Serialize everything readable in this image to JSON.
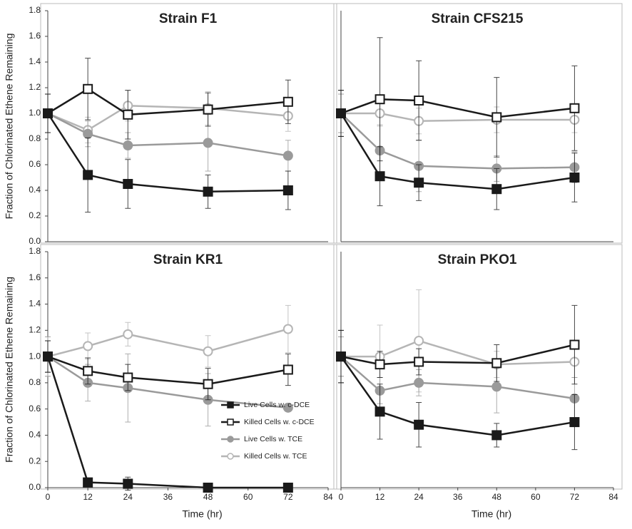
{
  "chart_data": [
    {
      "type": "line",
      "title": "Strain F1",
      "ylabel": "Fraction of Chlorinated Ethene Remaining",
      "x": [
        0,
        12,
        24,
        48,
        72
      ],
      "xlim": [
        0,
        84
      ],
      "ylim": [
        0,
        1.8
      ],
      "yticks": [
        {
          "value": 0,
          "label": "0.0"
        },
        {
          "value": 0.2,
          "label": "0.2"
        },
        {
          "value": 0.4,
          "label": "0.4"
        },
        {
          "value": 0.6,
          "label": "0.6"
        },
        {
          "value": 0.8,
          "label": "0.8"
        },
        {
          "value": 1,
          "label": "1.0"
        },
        {
          "value": 1.2,
          "label": "1.2"
        },
        {
          "value": 1.4,
          "label": "1.4"
        },
        {
          "value": 1.6,
          "label": "1.6"
        },
        {
          "value": 1.8,
          "label": "1.8"
        }
      ],
      "series": [
        {
          "color": "#1a1a1a",
          "marker": "square",
          "filled": true,
          "values": [
            1.0,
            0.52,
            0.45,
            0.39,
            0.4
          ],
          "errors": [
            0.15,
            0.29,
            0.19,
            0.13,
            0.15
          ]
        },
        {
          "color": "#1a1a1a",
          "marker": "square",
          "filled": false,
          "values": [
            1.0,
            1.19,
            0.99,
            1.03,
            1.09
          ],
          "errors": [
            0.15,
            0.24,
            0.19,
            0.13,
            0.17
          ]
        },
        {
          "color": "#9a9a9a",
          "marker": "circle",
          "filled": true,
          "values": [
            1.0,
            0.84,
            0.75,
            0.77,
            0.67
          ],
          "errors": [
            0.15,
            0.1,
            0.1,
            0.22,
            0.12
          ]
        },
        {
          "color": "#b5b5b5",
          "marker": "circle",
          "filled": false,
          "values": [
            1.0,
            0.87,
            1.06,
            1.04,
            0.98
          ],
          "errors": [
            0.15,
            0.1,
            0.12,
            0.13,
            0.12
          ]
        }
      ]
    },
    {
      "type": "line",
      "title": "Strain CFS215",
      "x": [
        0,
        12,
        24,
        48,
        72
      ],
      "xlim": [
        0,
        84
      ],
      "ylim": [
        0,
        1.8
      ],
      "series": [
        {
          "color": "#1a1a1a",
          "marker": "square",
          "filled": true,
          "values": [
            1.0,
            0.51,
            0.46,
            0.41,
            0.5
          ],
          "errors": [
            0.18,
            0.23,
            0.14,
            0.16,
            0.19
          ]
        },
        {
          "color": "#1a1a1a",
          "marker": "square",
          "filled": false,
          "values": [
            1.0,
            1.11,
            1.1,
            0.97,
            1.04
          ],
          "errors": [
            0.18,
            0.48,
            0.31,
            0.31,
            0.33
          ]
        },
        {
          "color": "#9a9a9a",
          "marker": "circle",
          "filled": true,
          "values": [
            1.0,
            0.71,
            0.59,
            0.57,
            0.58
          ],
          "errors": [
            0.15,
            0.2,
            0.2,
            0.1,
            0.12
          ]
        },
        {
          "color": "#b5b5b5",
          "marker": "circle",
          "filled": false,
          "values": [
            1.0,
            1.0,
            0.94,
            0.95,
            0.95
          ],
          "errors": [
            0.15,
            0.1,
            0.1,
            0.1,
            0.1
          ]
        }
      ]
    },
    {
      "type": "line",
      "title": "Strain KR1",
      "ylabel": "Fraction of Chlorinated Ethene Remaining",
      "xlabel": "Time (hr)",
      "x": [
        0,
        12,
        24,
        48,
        72
      ],
      "xlim": [
        0,
        84
      ],
      "ylim": [
        0,
        1.8
      ],
      "xticks": [
        0,
        12,
        24,
        36,
        48,
        60,
        72,
        84
      ],
      "yticks": [
        {
          "value": 0,
          "label": "0.0"
        },
        {
          "value": 0.2,
          "label": "0.2"
        },
        {
          "value": 0.4,
          "label": "0.4"
        },
        {
          "value": 0.6,
          "label": "0.6"
        },
        {
          "value": 0.8,
          "label": "0.8"
        },
        {
          "value": 1,
          "label": "1.0"
        },
        {
          "value": 1.2,
          "label": "1.2"
        },
        {
          "value": 1.4,
          "label": "1.4"
        },
        {
          "value": 1.6,
          "label": "1.6"
        },
        {
          "value": 1.8,
          "label": "1.8"
        }
      ],
      "legend": "lower right",
      "series": [
        {
          "name": "Live Cells w. c-DCE",
          "color": "#1a1a1a",
          "marker": "square",
          "filled": true,
          "values": [
            1.0,
            0.04,
            0.03,
            0.0,
            0.0
          ],
          "errors": [
            0.12,
            0.03,
            0.05,
            0,
            0
          ]
        },
        {
          "name": "Killed Cells w. c-DCE",
          "color": "#1a1a1a",
          "marker": "square",
          "filled": false,
          "values": [
            1.0,
            0.89,
            0.84,
            0.79,
            0.9
          ],
          "errors": [
            0.12,
            0.1,
            0.1,
            0.12,
            0.12
          ]
        },
        {
          "name": "Live Cells w. TCE",
          "color": "#9a9a9a",
          "marker": "circle",
          "filled": true,
          "values": [
            1.0,
            0.8,
            0.76,
            0.67,
            0.61
          ],
          "errors": [
            0.15,
            0.14,
            0.26,
            0.2,
            0
          ]
        },
        {
          "name": "Killed Cells w. TCE",
          "color": "#b5b5b5",
          "marker": "circle",
          "filled": false,
          "values": [
            1.0,
            1.08,
            1.17,
            1.04,
            1.21
          ],
          "errors": [
            0.15,
            0.1,
            0.09,
            0.12,
            0.18
          ]
        }
      ]
    },
    {
      "type": "line",
      "title": "Strain PKO1",
      "xlabel": "Time (hr)",
      "x": [
        0,
        12,
        24,
        48,
        72
      ],
      "xlim": [
        0,
        84
      ],
      "ylim": [
        0,
        1.8
      ],
      "xticks": [
        0,
        12,
        24,
        36,
        48,
        60,
        72,
        84
      ],
      "series": [
        {
          "color": "#1a1a1a",
          "marker": "square",
          "filled": true,
          "values": [
            1.0,
            0.58,
            0.48,
            0.4,
            0.5
          ],
          "errors": [
            0.2,
            0.21,
            0.17,
            0.09,
            0.21
          ]
        },
        {
          "color": "#1a1a1a",
          "marker": "square",
          "filled": false,
          "values": [
            1.0,
            0.94,
            0.96,
            0.95,
            1.09
          ],
          "errors": [
            0.2,
            0.1,
            0.1,
            0.14,
            0.3
          ]
        },
        {
          "color": "#9a9a9a",
          "marker": "circle",
          "filled": true,
          "values": [
            1.0,
            0.74,
            0.8,
            0.77,
            0.68
          ],
          "errors": [
            0.15,
            0.1,
            0.1,
            0.2,
            0.16
          ]
        },
        {
          "color": "#b5b5b5",
          "marker": "circle",
          "filled": false,
          "values": [
            1.0,
            1.0,
            1.12,
            0.94,
            0.96
          ],
          "errors": [
            0.15,
            0.24,
            0.39,
            0.1,
            0.12
          ]
        }
      ]
    }
  ]
}
